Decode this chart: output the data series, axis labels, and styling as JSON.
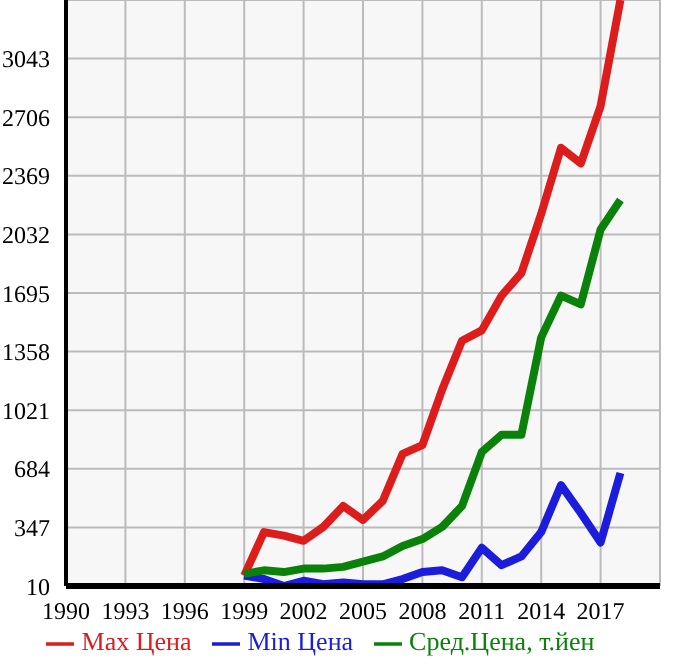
{
  "chart_data": {
    "type": "line",
    "x": [
      1999,
      2000,
      2001,
      2002,
      2003,
      2004,
      2005,
      2006,
      2007,
      2008,
      2009,
      2010,
      2011,
      2012,
      2013,
      2014,
      2015,
      2016,
      2017,
      2018
    ],
    "series": [
      {
        "name": "Max Цена",
        "color": "#dd1c1c",
        "values": [
          70,
          320,
          300,
          270,
          350,
          470,
          390,
          500,
          770,
          820,
          1140,
          1420,
          1480,
          1680,
          1810,
          2150,
          2530,
          2440,
          2770,
          3380
        ]
      },
      {
        "name": "Min Цена",
        "color": "#1c1cdd",
        "values": [
          70,
          50,
          10,
          40,
          20,
          30,
          20,
          20,
          50,
          90,
          100,
          60,
          230,
          130,
          180,
          320,
          590,
          430,
          260,
          660
        ]
      },
      {
        "name": "Сред.Цена, т.йен",
        "color": "#0a820a",
        "values": [
          80,
          100,
          90,
          110,
          110,
          120,
          150,
          180,
          240,
          280,
          350,
          470,
          780,
          880,
          880,
          1440,
          1680,
          1630,
          2060,
          2230
        ]
      }
    ],
    "xlim": [
      1990,
      2020
    ],
    "xticks": [
      1990,
      1993,
      1996,
      1999,
      2002,
      2005,
      2008,
      2011,
      2014,
      2017
    ],
    "ylim": [
      10,
      3380
    ],
    "yticks": [
      10,
      347,
      684,
      1021,
      1358,
      1695,
      2032,
      2369,
      2706,
      3043
    ],
    "grid": true,
    "legend": "bottom",
    "marker": "none",
    "line_style": "solid"
  }
}
